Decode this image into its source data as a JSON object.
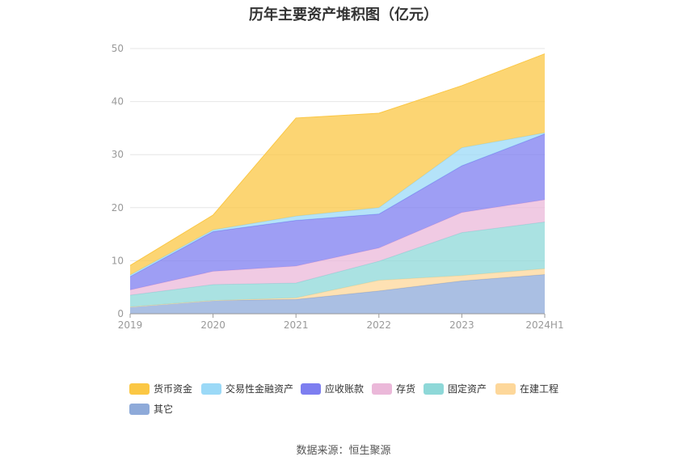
{
  "chart_data": {
    "type": "area",
    "stacked": true,
    "title": "历年主要资产堆积图（亿元）",
    "categories": [
      "2019",
      "2020",
      "2021",
      "2022",
      "2023",
      "2024H1"
    ],
    "ylim": [
      0,
      50
    ],
    "yticks": [
      0,
      10,
      20,
      30,
      40,
      50
    ],
    "grid": true,
    "legend_position": "bottom",
    "series": [
      {
        "name": "其它",
        "color": "#8eaad9",
        "values": [
          1.3,
          2.5,
          2.7,
          4.3,
          6.2,
          7.4
        ]
      },
      {
        "name": "在建工程",
        "color": "#fdd79a",
        "values": [
          0.0,
          0.0,
          0.3,
          2.0,
          1.0,
          1.1
        ]
      },
      {
        "name": "固定资产",
        "color": "#8ed8d8",
        "values": [
          2.2,
          3.0,
          2.8,
          3.6,
          8.1,
          8.8
        ]
      },
      {
        "name": "存货",
        "color": "#ebb8d9",
        "values": [
          1.0,
          2.5,
          3.2,
          2.5,
          3.8,
          4.2
        ]
      },
      {
        "name": "应收账款",
        "color": "#7d7ef0",
        "values": [
          2.5,
          7.5,
          8.6,
          6.4,
          8.8,
          12.4
        ]
      },
      {
        "name": "交易性金融资产",
        "color": "#9bd9f7",
        "values": [
          0.3,
          0.3,
          0.8,
          1.2,
          3.4,
          0.2
        ]
      },
      {
        "name": "货币资金",
        "color": "#fbc744",
        "values": [
          1.8,
          2.8,
          18.5,
          17.8,
          11.7,
          14.9
        ]
      }
    ]
  },
  "legend_order": [
    "货币资金",
    "交易性金融资产",
    "应收账款",
    "存货",
    "固定资产",
    "在建工程",
    "其它"
  ],
  "source_text": "数据来源：恒生聚源"
}
